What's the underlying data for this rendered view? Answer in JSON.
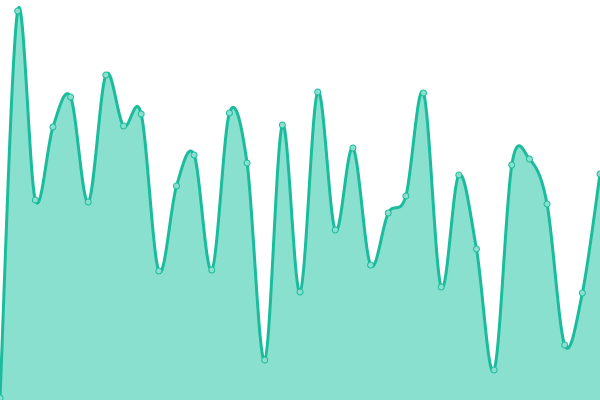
{
  "chart_data": {
    "type": "area",
    "x": [
      0,
      1,
      2,
      3,
      4,
      5,
      6,
      7,
      8,
      9,
      10,
      11,
      12,
      13,
      14,
      15,
      16,
      17,
      18,
      19,
      20,
      21,
      22,
      23,
      24,
      25,
      26,
      27,
      28,
      29,
      30,
      31,
      32,
      33,
      34
    ],
    "values": [
      2,
      389,
      200,
      273,
      303,
      198,
      325,
      274,
      286,
      129,
      214,
      245,
      130,
      287,
      237,
      40,
      275,
      108,
      308,
      170,
      252,
      135,
      187,
      204,
      307,
      113,
      225,
      151,
      30,
      235,
      241,
      196,
      55,
      107,
      226
    ],
    "ylim": [
      0,
      400
    ],
    "grid": false,
    "colors": {
      "line": "#1abc9c",
      "fill": "#8ae0cf",
      "point_fill": "#8ae0cf"
    }
  }
}
